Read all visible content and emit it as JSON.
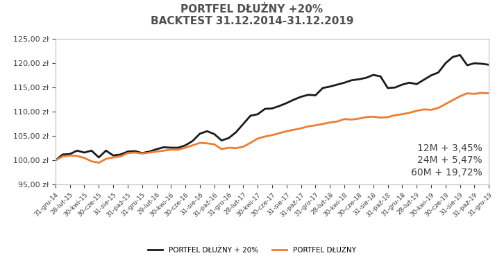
{
  "chart_data": {
    "type": "line",
    "title": "PORTFEL DŁUŻNY +20%\nBACKTEST 31.12.2014-31.12.2019",
    "categories": [
      "31-gru-14",
      null,
      "28-lut-15",
      null,
      "30-kwi-15",
      null,
      "30-cze-15",
      null,
      "31-sie-15",
      null,
      "31-paź-15",
      null,
      "31-gru-15",
      null,
      "29-lut-16",
      null,
      "30-kwi-16",
      null,
      "30-cze-16",
      null,
      "31-sie-16",
      null,
      "31-paź-16",
      null,
      "31-gru-16",
      null,
      "28-lut-17",
      null,
      "30-kwi-17",
      null,
      "30-cze-17",
      null,
      "31-sie-17",
      null,
      "31-paź-17",
      null,
      "31-gru-17",
      null,
      "28-lut-18",
      null,
      "30-kwi-18",
      null,
      "30-cze-18",
      null,
      "31-sie-18",
      null,
      "31-paź-18",
      null,
      "31-gru-18",
      null,
      "28-lut-19",
      null,
      "30-kwi-19",
      null,
      "30-cze-19",
      null,
      "31-sie-19",
      null,
      "31-paź-19",
      null,
      "31-gru-19"
    ],
    "series": [
      {
        "name": "PORTFEL DŁUŻNY + 20%",
        "color": "#1a1a1a",
        "values": [
          100,
          101.2,
          101.3,
          102,
          101.6,
          102,
          100.6,
          102,
          101,
          101.2,
          101.8,
          101.9,
          101.5,
          101.8,
          102.3,
          102.7,
          102.6,
          102.6,
          103.1,
          104,
          105.5,
          106,
          105.4,
          104.1,
          104.6,
          105.8,
          107.5,
          109.2,
          109.5,
          110.6,
          110.7,
          111.2,
          111.8,
          112.5,
          113.1,
          113.5,
          113.4,
          114.9,
          115.2,
          115.6,
          116,
          116.5,
          116.7,
          117,
          117.6,
          117.3,
          114.9,
          115,
          115.6,
          116,
          115.7,
          116.6,
          117.5,
          118.1,
          120,
          121.3,
          121.7,
          119.6,
          120,
          119.9,
          119.7
        ]
      },
      {
        "name": "PORTFEL DŁUŻNY",
        "color": "#ed7d31",
        "values": [
          100,
          100.8,
          101,
          100.9,
          100.5,
          99.8,
          99.5,
          100.3,
          100.6,
          100.8,
          101.5,
          101.6,
          101.4,
          101.6,
          101.8,
          102,
          102.2,
          102.2,
          102.6,
          103.1,
          103.6,
          103.5,
          103.3,
          102.3,
          102.6,
          102.5,
          102.8,
          103.6,
          104.5,
          104.9,
          105.2,
          105.6,
          106,
          106.3,
          106.6,
          107,
          107.2,
          107.5,
          107.8,
          108,
          108.5,
          108.4,
          108.6,
          108.9,
          109,
          108.8,
          108.9,
          109.3,
          109.5,
          109.8,
          110.2,
          110.5,
          110.4,
          110.8,
          111.6,
          112.4,
          113.2,
          113.8,
          113.7,
          113.9,
          113.8
        ]
      }
    ],
    "ylim": [
      95,
      125
    ],
    "yticks": [
      {
        "value": 95,
        "label": "95,00 zł"
      },
      {
        "value": 100,
        "label": "100,00 zł"
      },
      {
        "value": 105,
        "label": "105,00 zł"
      },
      {
        "value": 110,
        "label": "110,00 zł"
      },
      {
        "value": 115,
        "label": "115,00 zł"
      },
      {
        "value": 120,
        "label": "120,00 zł"
      },
      {
        "value": 125,
        "label": "125,00 zł"
      }
    ],
    "annotations": [
      "12M + 3,45%",
      "24M + 5,47%",
      "60M + 19,72%"
    ],
    "legend": "lower center",
    "grid": false
  }
}
